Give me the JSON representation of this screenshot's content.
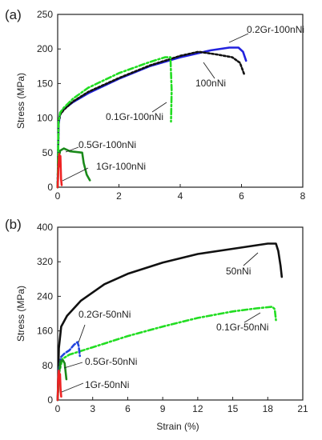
{
  "chart_data": [
    {
      "panel": "(a)",
      "type": "line",
      "xlim": [
        0,
        8
      ],
      "ylim": [
        0,
        250
      ],
      "xticks": [
        "0",
        "2",
        "4",
        "6",
        "8"
      ],
      "yticks": [
        "0",
        "50",
        "100",
        "150",
        "200",
        "250"
      ],
      "xlabel": "",
      "ylabel": "Stress (MPa)",
      "grid": false,
      "legend": "none",
      "series": [
        {
          "name": "0.2Gr-100nNi",
          "color": "#2222dd",
          "dash": "solid",
          "points": [
            [
              0,
              0
            ],
            [
              0.03,
              90
            ],
            [
              0.08,
              108
            ],
            [
              0.2,
              113
            ],
            [
              0.5,
              123
            ],
            [
              1,
              136
            ],
            [
              2,
              157
            ],
            [
              3,
              175
            ],
            [
              4,
              188
            ],
            [
              5,
              198
            ],
            [
              5.6,
              202
            ],
            [
              5.9,
              202
            ],
            [
              6.05,
              196
            ],
            [
              6.15,
              183
            ]
          ]
        },
        {
          "name": "100nNi",
          "color": "#111111",
          "dash": "dotted",
          "points": [
            [
              0,
              0
            ],
            [
              0.03,
              95
            ],
            [
              0.08,
              105
            ],
            [
              0.2,
              112
            ],
            [
              0.5,
              124
            ],
            [
              1,
              138
            ],
            [
              2,
              158
            ],
            [
              3,
              176
            ],
            [
              4,
              190
            ],
            [
              4.6,
              196
            ],
            [
              5.2,
              192
            ],
            [
              5.7,
              188
            ],
            [
              5.95,
              180
            ],
            [
              6.1,
              162
            ]
          ]
        },
        {
          "name": "0.1Gr-100nNi",
          "color": "#22dd22",
          "dash": "dashdot",
          "points": [
            [
              0,
              0
            ],
            [
              0.03,
              95
            ],
            [
              0.08,
              108
            ],
            [
              0.2,
              115
            ],
            [
              0.5,
              128
            ],
            [
              1,
              144
            ],
            [
              2,
              165
            ],
            [
              3,
              181
            ],
            [
              3.5,
              188
            ],
            [
              3.68,
              188
            ],
            [
              3.72,
              140
            ],
            [
              3.7,
              95
            ]
          ]
        },
        {
          "name": "0.5Gr-100nNi",
          "color": "#1a8a1a",
          "dash": "solid",
          "points": [
            [
              0,
              0
            ],
            [
              0.03,
              42
            ],
            [
              0.08,
              53
            ],
            [
              0.2,
              56
            ],
            [
              0.4,
              52
            ],
            [
              0.6,
              51
            ],
            [
              0.8,
              50
            ],
            [
              0.85,
              35
            ],
            [
              0.95,
              18
            ],
            [
              1.05,
              10
            ]
          ]
        },
        {
          "name": "1Gr-100nNi",
          "color": "#ee2222",
          "dash": "solid",
          "points": [
            [
              0,
              0
            ],
            [
              0.03,
              35
            ],
            [
              0.05,
              48
            ],
            [
              0.07,
              30
            ],
            [
              0.09,
              45
            ],
            [
              0.11,
              12
            ],
            [
              0.13,
              3
            ]
          ]
        }
      ],
      "annotations": [
        "0.2Gr-100nNi",
        "100nNi",
        "0.1Gr-100nNi",
        "0.5Gr-100nNi",
        "1Gr-100nNi"
      ]
    },
    {
      "panel": "(b)",
      "type": "line",
      "xlim": [
        0,
        21
      ],
      "ylim": [
        0,
        400
      ],
      "xticks": [
        "0",
        "3",
        "6",
        "9",
        "12",
        "15",
        "18",
        "21"
      ],
      "yticks": [
        "0",
        "80",
        "160",
        "240",
        "320",
        "400"
      ],
      "xlabel": "Strain (%)",
      "ylabel": "Stress (MPa)",
      "grid": false,
      "legend": "none",
      "series": [
        {
          "name": "50nNi",
          "color": "#111111",
          "dash": "solid",
          "points": [
            [
              0,
              0
            ],
            [
              0.1,
              120
            ],
            [
              0.3,
              170
            ],
            [
              0.8,
              195
            ],
            [
              2,
              230
            ],
            [
              4,
              268
            ],
            [
              6,
              292
            ],
            [
              9,
              318
            ],
            [
              12,
              338
            ],
            [
              15,
              350
            ],
            [
              18,
              362
            ],
            [
              18.7,
              362
            ],
            [
              18.9,
              345
            ],
            [
              19.1,
              310
            ],
            [
              19.2,
              285
            ]
          ]
        },
        {
          "name": "0.1Gr-50nNi",
          "color": "#22dd22",
          "dash": "dashdot",
          "points": [
            [
              0,
              0
            ],
            [
              0.1,
              60
            ],
            [
              0.4,
              95
            ],
            [
              1,
              105
            ],
            [
              3,
              122
            ],
            [
              6,
              148
            ],
            [
              9,
              170
            ],
            [
              12,
              190
            ],
            [
              15,
              205
            ],
            [
              17,
              212
            ],
            [
              18.4,
              216
            ],
            [
              18.6,
              210
            ],
            [
              18.7,
              185
            ]
          ]
        },
        {
          "name": "0.2Gr-50nNi",
          "color": "#2244dd",
          "dash": "dashed",
          "points": [
            [
              0,
              0
            ],
            [
              0.1,
              70
            ],
            [
              0.3,
              100
            ],
            [
              0.6,
              108
            ],
            [
              1,
              115
            ],
            [
              1.4,
              128
            ],
            [
              1.7,
              134
            ],
            [
              1.8,
              125
            ],
            [
              1.9,
              102
            ]
          ]
        },
        {
          "name": "0.5Gr-50nNi",
          "color": "#1a8a1a",
          "dash": "solid",
          "points": [
            [
              0,
              0
            ],
            [
              0.1,
              60
            ],
            [
              0.25,
              90
            ],
            [
              0.45,
              92
            ],
            [
              0.6,
              85
            ],
            [
              0.7,
              60
            ],
            [
              0.75,
              48
            ]
          ]
        },
        {
          "name": "1Gr-50nNi",
          "color": "#ee2222",
          "dash": "solid",
          "points": [
            [
              0,
              0
            ],
            [
              0.05,
              50
            ],
            [
              0.1,
              68
            ],
            [
              0.15,
              40
            ],
            [
              0.2,
              60
            ],
            [
              0.25,
              25
            ],
            [
              0.3,
              8
            ]
          ]
        }
      ],
      "annotations": [
        "50nNi",
        "0.1Gr-50nNi",
        "0.2Gr-50nNi",
        "0.5Gr-50nNi",
        "1Gr-50nNi"
      ]
    }
  ]
}
